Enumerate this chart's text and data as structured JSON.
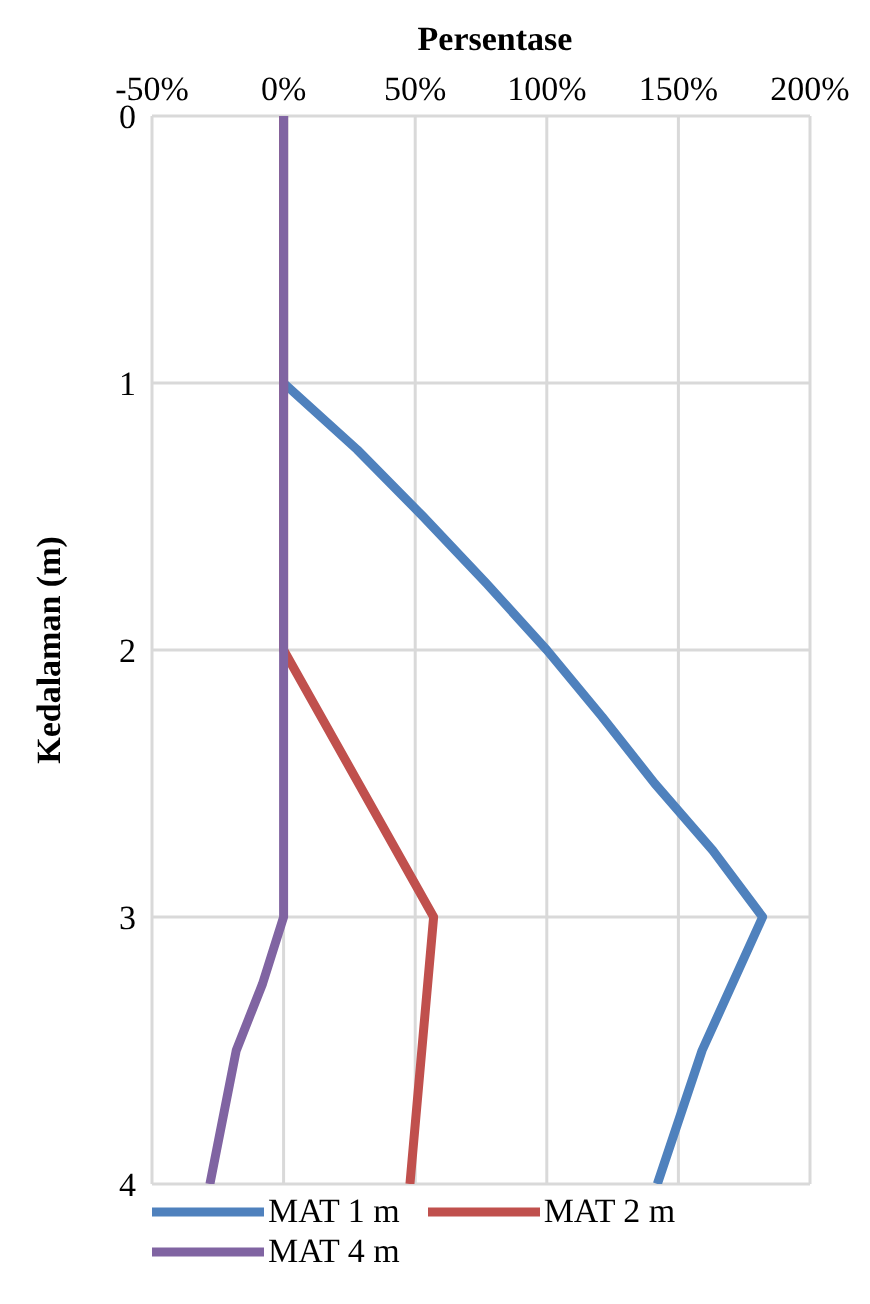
{
  "chart_data": {
    "type": "line",
    "xlabel": "Persentase",
    "ylabel": "Kedalaman (m)",
    "xlim": [
      -50,
      200
    ],
    "xticks": [
      {
        "value": -50,
        "label": "-50%"
      },
      {
        "value": 0,
        "label": "0%"
      },
      {
        "value": 50,
        "label": "50%"
      },
      {
        "value": 100,
        "label": "100%"
      },
      {
        "value": 150,
        "label": "150%"
      },
      {
        "value": 200,
        "label": "200%"
      }
    ],
    "ylim": [
      4,
      0
    ],
    "yticks": [
      0,
      1,
      2,
      3,
      4
    ],
    "grid": true,
    "legend": "bottom",
    "marker": "none",
    "line_style": "solid",
    "series": [
      {
        "name": "MAT 1 m",
        "color": "#4f81bd",
        "x": [
          0,
          0,
          28,
          53,
          77,
          100,
          121,
          141,
          163,
          182,
          159,
          142
        ],
        "values": [
          0,
          1,
          1.25,
          1.5,
          1.75,
          2,
          2.25,
          2.5,
          2.75,
          3,
          3.5,
          4
        ]
      },
      {
        "name": "MAT 2 m",
        "color": "#c0504d",
        "x": [
          0,
          0,
          0,
          57,
          48
        ],
        "values": [
          0,
          1,
          2,
          3,
          4
        ]
      },
      {
        "name": "MAT 4 m",
        "color": "#8064a2",
        "x": [
          0,
          0,
          0,
          0,
          -8,
          -18,
          -28
        ],
        "values": [
          0,
          1,
          2,
          3,
          3.25,
          3.5,
          4
        ]
      }
    ]
  }
}
